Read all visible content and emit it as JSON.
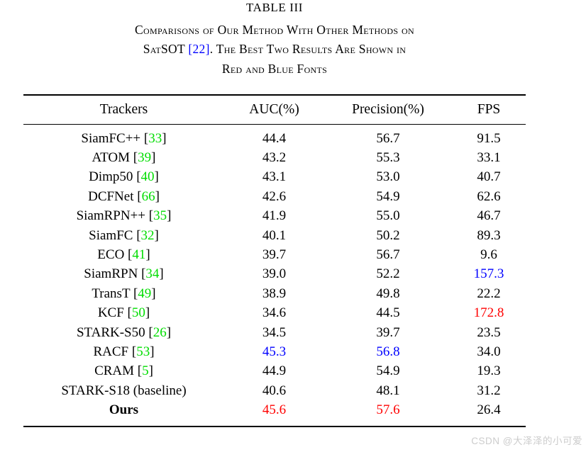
{
  "title": "TABLE III",
  "caption": {
    "line1": "Comparisons of Our Method With Other Methods on",
    "line2_pre": "SatSOT ",
    "line2_cite": "22",
    "line2_post": ". The Best Two Results Are Shown in",
    "line3": "Red and Blue Fonts"
  },
  "cite": {
    "open": "[",
    "close": "]"
  },
  "colors": {
    "best": "#ff0000",
    "second": "#0000ff",
    "cite": "#00dd00",
    "caption_link": "#0000ff",
    "watermark": "#cccccc"
  },
  "table": {
    "columns": [
      "Trackers",
      "AUC(%)",
      "Precision(%)",
      "FPS"
    ],
    "rows": [
      {
        "name": "SiamFC++",
        "cite": "33",
        "auc": "44.4",
        "prec": "56.7",
        "fps": "91.5"
      },
      {
        "name": "ATOM",
        "cite": "39",
        "auc": "43.2",
        "prec": "55.3",
        "fps": "33.1"
      },
      {
        "name": "Dimp50",
        "cite": "40",
        "auc": "43.1",
        "prec": "53.0",
        "fps": "40.7"
      },
      {
        "name": "DCFNet",
        "cite": "66",
        "auc": "42.6",
        "prec": "54.9",
        "fps": "62.6"
      },
      {
        "name": "SiamRPN++",
        "cite": "35",
        "auc": "41.9",
        "prec": "55.0",
        "fps": "46.7"
      },
      {
        "name": "SiamFC",
        "cite": "32",
        "auc": "40.1",
        "prec": "50.2",
        "fps": "89.3"
      },
      {
        "name": "ECO",
        "cite": "41",
        "auc": "39.7",
        "prec": "56.7",
        "fps": "9.6"
      },
      {
        "name": "SiamRPN",
        "cite": "34",
        "auc": "39.0",
        "prec": "52.2",
        "fps": "157.3",
        "fps_style": "second"
      },
      {
        "name": "TransT",
        "cite": "49",
        "auc": "38.9",
        "prec": "49.8",
        "fps": "22.2"
      },
      {
        "name": "KCF",
        "cite": "50",
        "auc": "34.6",
        "prec": "44.5",
        "fps": "172.8",
        "fps_style": "best"
      },
      {
        "name": "STARK-S50",
        "cite": "26",
        "auc": "34.5",
        "prec": "39.7",
        "fps": "23.5"
      },
      {
        "name": "RACF",
        "cite": "53",
        "auc": "45.3",
        "auc_style": "second",
        "prec": "56.8",
        "prec_style": "second",
        "fps": "34.0"
      },
      {
        "name": "CRAM",
        "cite": "5",
        "auc": "44.9",
        "prec": "54.9",
        "fps": "19.3"
      },
      {
        "name": "STARK-S18 (baseline)",
        "auc": "40.6",
        "prec": "48.1",
        "fps": "31.2"
      },
      {
        "name": "Ours",
        "bold": true,
        "auc": "45.6",
        "auc_style": "best",
        "prec": "57.6",
        "prec_style": "best",
        "fps": "26.4"
      }
    ]
  },
  "watermark": "CSDN @大泽泽的小可爱"
}
